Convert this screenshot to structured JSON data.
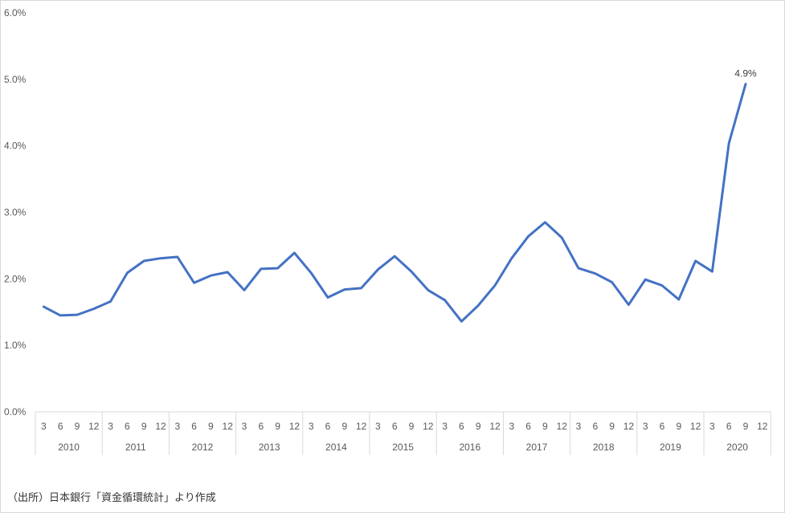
{
  "chart_data": {
    "type": "line",
    "title": "",
    "xlabel": "",
    "ylabel": "",
    "y_ticks": [
      "0.0%",
      "1.0%",
      "2.0%",
      "3.0%",
      "4.0%",
      "5.0%",
      "6.0%"
    ],
    "ylim": [
      0,
      6
    ],
    "grid": false,
    "legend": "none",
    "years": [
      "2010",
      "2011",
      "2012",
      "2013",
      "2014",
      "2015",
      "2016",
      "2017",
      "2018",
      "2019",
      "2020"
    ],
    "quarter_labels": [
      "3",
      "6",
      "9",
      "12"
    ],
    "series": [
      {
        "color": "#4472c4",
        "values": [
          1.58,
          1.45,
          1.46,
          1.55,
          1.66,
          2.09,
          2.27,
          2.31,
          2.33,
          1.94,
          2.05,
          2.1,
          1.83,
          2.15,
          2.16,
          2.39,
          2.09,
          1.72,
          1.84,
          1.86,
          2.14,
          2.34,
          2.11,
          1.83,
          1.68,
          1.36,
          1.6,
          1.9,
          2.31,
          2.64,
          2.85,
          2.62,
          2.16,
          2.08,
          1.95,
          1.61,
          1.99,
          1.9,
          1.69,
          2.27,
          2.11,
          4.04,
          4.93
        ]
      }
    ],
    "annotation": {
      "label": "4.9%",
      "index": 42
    }
  },
  "source_note": "（出所）日本銀行「資金循環統計」より作成"
}
